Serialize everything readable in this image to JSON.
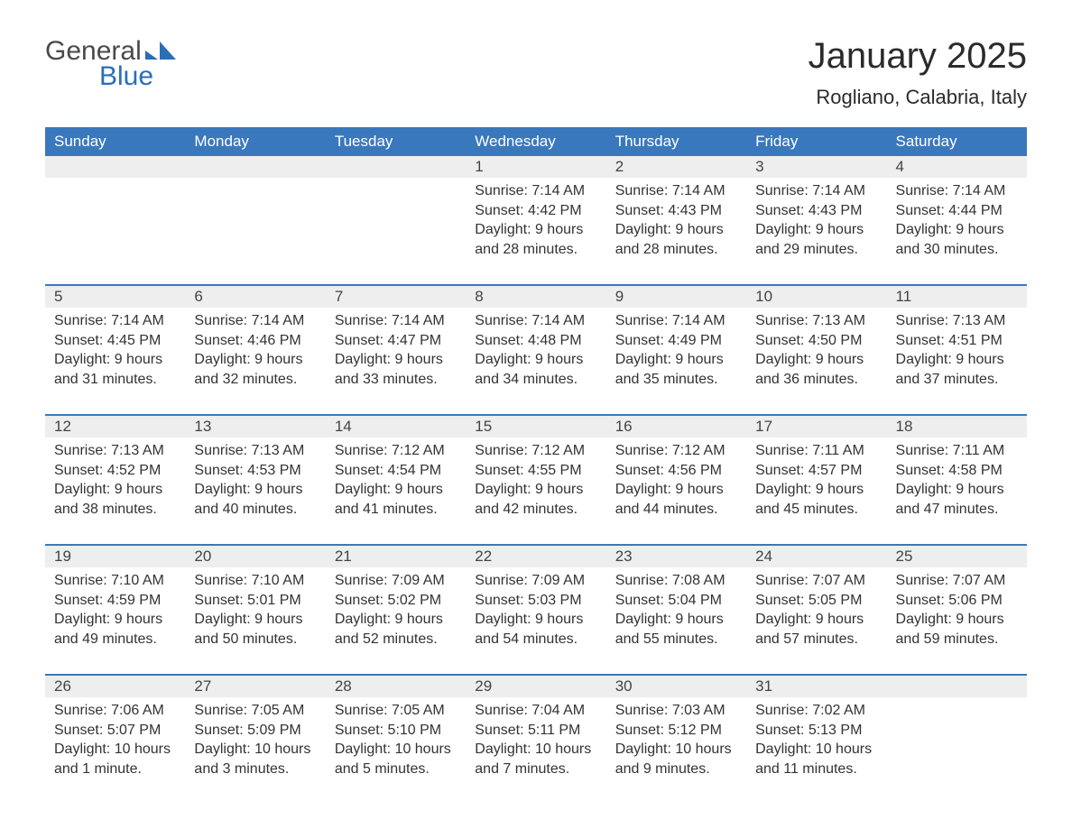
{
  "logo": {
    "word1": "General",
    "word2": "Blue",
    "color_gray": "#4a4a4a",
    "color_blue": "#2a6eb8"
  },
  "title": "January 2025",
  "location": "Rogliano, Calabria, Italy",
  "header_bg": "#3a78bd",
  "header_text_color": "#ffffff",
  "daynum_bg": "#eeeeee",
  "border_color": "#3a78bd",
  "text_color": "#333333",
  "background_color": "#ffffff",
  "day_labels": [
    "Sunday",
    "Monday",
    "Tuesday",
    "Wednesday",
    "Thursday",
    "Friday",
    "Saturday"
  ],
  "label_prefixes": {
    "sunrise": "Sunrise: ",
    "sunset": "Sunset: ",
    "daylight": "Daylight: "
  },
  "weeks": [
    [
      null,
      null,
      null,
      {
        "n": "1",
        "sunrise": "7:14 AM",
        "sunset": "4:42 PM",
        "daylight": "9 hours and 28 minutes."
      },
      {
        "n": "2",
        "sunrise": "7:14 AM",
        "sunset": "4:43 PM",
        "daylight": "9 hours and 28 minutes."
      },
      {
        "n": "3",
        "sunrise": "7:14 AM",
        "sunset": "4:43 PM",
        "daylight": "9 hours and 29 minutes."
      },
      {
        "n": "4",
        "sunrise": "7:14 AM",
        "sunset": "4:44 PM",
        "daylight": "9 hours and 30 minutes."
      }
    ],
    [
      {
        "n": "5",
        "sunrise": "7:14 AM",
        "sunset": "4:45 PM",
        "daylight": "9 hours and 31 minutes."
      },
      {
        "n": "6",
        "sunrise": "7:14 AM",
        "sunset": "4:46 PM",
        "daylight": "9 hours and 32 minutes."
      },
      {
        "n": "7",
        "sunrise": "7:14 AM",
        "sunset": "4:47 PM",
        "daylight": "9 hours and 33 minutes."
      },
      {
        "n": "8",
        "sunrise": "7:14 AM",
        "sunset": "4:48 PM",
        "daylight": "9 hours and 34 minutes."
      },
      {
        "n": "9",
        "sunrise": "7:14 AM",
        "sunset": "4:49 PM",
        "daylight": "9 hours and 35 minutes."
      },
      {
        "n": "10",
        "sunrise": "7:13 AM",
        "sunset": "4:50 PM",
        "daylight": "9 hours and 36 minutes."
      },
      {
        "n": "11",
        "sunrise": "7:13 AM",
        "sunset": "4:51 PM",
        "daylight": "9 hours and 37 minutes."
      }
    ],
    [
      {
        "n": "12",
        "sunrise": "7:13 AM",
        "sunset": "4:52 PM",
        "daylight": "9 hours and 38 minutes."
      },
      {
        "n": "13",
        "sunrise": "7:13 AM",
        "sunset": "4:53 PM",
        "daylight": "9 hours and 40 minutes."
      },
      {
        "n": "14",
        "sunrise": "7:12 AM",
        "sunset": "4:54 PM",
        "daylight": "9 hours and 41 minutes."
      },
      {
        "n": "15",
        "sunrise": "7:12 AM",
        "sunset": "4:55 PM",
        "daylight": "9 hours and 42 minutes."
      },
      {
        "n": "16",
        "sunrise": "7:12 AM",
        "sunset": "4:56 PM",
        "daylight": "9 hours and 44 minutes."
      },
      {
        "n": "17",
        "sunrise": "7:11 AM",
        "sunset": "4:57 PM",
        "daylight": "9 hours and 45 minutes."
      },
      {
        "n": "18",
        "sunrise": "7:11 AM",
        "sunset": "4:58 PM",
        "daylight": "9 hours and 47 minutes."
      }
    ],
    [
      {
        "n": "19",
        "sunrise": "7:10 AM",
        "sunset": "4:59 PM",
        "daylight": "9 hours and 49 minutes."
      },
      {
        "n": "20",
        "sunrise": "7:10 AM",
        "sunset": "5:01 PM",
        "daylight": "9 hours and 50 minutes."
      },
      {
        "n": "21",
        "sunrise": "7:09 AM",
        "sunset": "5:02 PM",
        "daylight": "9 hours and 52 minutes."
      },
      {
        "n": "22",
        "sunrise": "7:09 AM",
        "sunset": "5:03 PM",
        "daylight": "9 hours and 54 minutes."
      },
      {
        "n": "23",
        "sunrise": "7:08 AM",
        "sunset": "5:04 PM",
        "daylight": "9 hours and 55 minutes."
      },
      {
        "n": "24",
        "sunrise": "7:07 AM",
        "sunset": "5:05 PM",
        "daylight": "9 hours and 57 minutes."
      },
      {
        "n": "25",
        "sunrise": "7:07 AM",
        "sunset": "5:06 PM",
        "daylight": "9 hours and 59 minutes."
      }
    ],
    [
      {
        "n": "26",
        "sunrise": "7:06 AM",
        "sunset": "5:07 PM",
        "daylight": "10 hours and 1 minute."
      },
      {
        "n": "27",
        "sunrise": "7:05 AM",
        "sunset": "5:09 PM",
        "daylight": "10 hours and 3 minutes."
      },
      {
        "n": "28",
        "sunrise": "7:05 AM",
        "sunset": "5:10 PM",
        "daylight": "10 hours and 5 minutes."
      },
      {
        "n": "29",
        "sunrise": "7:04 AM",
        "sunset": "5:11 PM",
        "daylight": "10 hours and 7 minutes."
      },
      {
        "n": "30",
        "sunrise": "7:03 AM",
        "sunset": "5:12 PM",
        "daylight": "10 hours and 9 minutes."
      },
      {
        "n": "31",
        "sunrise": "7:02 AM",
        "sunset": "5:13 PM",
        "daylight": "10 hours and 11 minutes."
      },
      null
    ]
  ]
}
